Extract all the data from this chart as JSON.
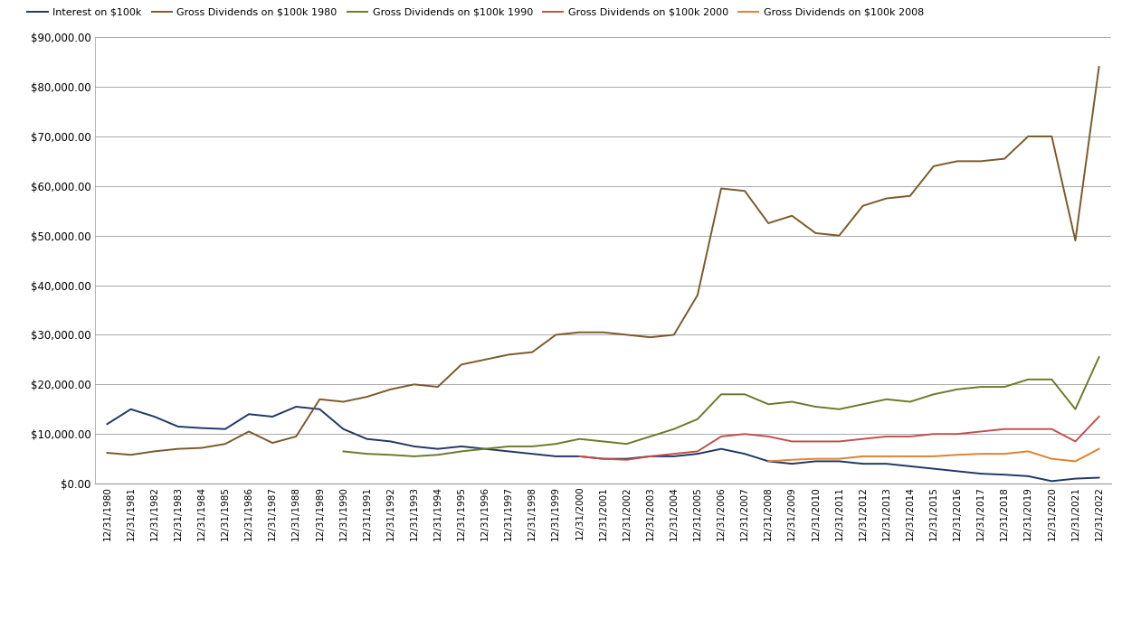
{
  "x_labels": [
    "12/31/1980",
    "12/31/1981",
    "12/31/1982",
    "12/31/1983",
    "12/31/1984",
    "12/31/1985",
    "12/31/1986",
    "12/31/1987",
    "12/31/1988",
    "12/31/1989",
    "12/31/1990",
    "12/31/1991",
    "12/31/1992",
    "12/31/1993",
    "12/31/1994",
    "12/31/1995",
    "12/31/1996",
    "12/31/1997",
    "12/31/1998",
    "12/31/1999",
    "12/31/2000",
    "12/31/2001",
    "12/31/2002",
    "12/31/2003",
    "12/31/2004",
    "12/31/2005",
    "12/31/2006",
    "12/31/2007",
    "12/31/2008",
    "12/31/2009",
    "12/31/2010",
    "12/31/2011",
    "12/31/2012",
    "12/31/2013",
    "12/31/2014",
    "12/31/2015",
    "12/31/2016",
    "12/31/2017",
    "12/31/2018",
    "12/31/2019",
    "12/31/2020",
    "12/31/2021",
    "12/31/2022"
  ],
  "interest": [
    12000,
    15000,
    13500,
    11500,
    11200,
    11000,
    14000,
    13500,
    15500,
    15000,
    11000,
    9000,
    8500,
    7500,
    7000,
    7500,
    7000,
    6500,
    6000,
    5500,
    5500,
    5000,
    5000,
    5500,
    5500,
    6000,
    7000,
    6000,
    4500,
    4000,
    4500,
    4500,
    4000,
    4000,
    3500,
    3000,
    2500,
    2000,
    1800,
    1500,
    500,
    1000,
    1200
  ],
  "gross_1980": [
    6200,
    5800,
    6500,
    7000,
    7200,
    8000,
    10500,
    8200,
    9500,
    17000,
    16500,
    17500,
    19000,
    20000,
    19500,
    24000,
    25000,
    26000,
    26500,
    30000,
    30500,
    30500,
    30000,
    29500,
    30000,
    38000,
    59500,
    59000,
    52500,
    54000,
    50500,
    50000,
    56000,
    57500,
    58000,
    64000,
    65000,
    65000,
    65500,
    70000,
    70000,
    49000,
    84000
  ],
  "gross_1990": [
    null,
    null,
    null,
    null,
    null,
    null,
    null,
    null,
    null,
    null,
    6500,
    6000,
    5800,
    5500,
    5800,
    6500,
    7000,
    7500,
    7500,
    8000,
    9000,
    8500,
    8000,
    9500,
    11000,
    13000,
    18000,
    18000,
    16000,
    16500,
    15500,
    15000,
    16000,
    17000,
    16500,
    18000,
    19000,
    19500,
    19500,
    21000,
    21000,
    15000,
    25500
  ],
  "gross_2000": [
    null,
    null,
    null,
    null,
    null,
    null,
    null,
    null,
    null,
    null,
    null,
    null,
    null,
    null,
    null,
    null,
    null,
    null,
    null,
    null,
    5500,
    5000,
    4800,
    5500,
    6000,
    6500,
    9500,
    10000,
    9500,
    8500,
    8500,
    8500,
    9000,
    9500,
    9500,
    10000,
    10000,
    10500,
    11000,
    11000,
    11000,
    8500,
    13500
  ],
  "gross_2008": [
    null,
    null,
    null,
    null,
    null,
    null,
    null,
    null,
    null,
    null,
    null,
    null,
    null,
    null,
    null,
    null,
    null,
    null,
    null,
    null,
    null,
    null,
    null,
    null,
    null,
    null,
    null,
    null,
    4500,
    4800,
    5000,
    5000,
    5500,
    5500,
    5500,
    5500,
    5800,
    6000,
    6000,
    6500,
    5000,
    4500,
    7000
  ],
  "series_colors": {
    "interest": "#1f3864",
    "gross_1980": "#7b5a2a",
    "gross_1990": "#6b7a2a",
    "gross_2000": "#c0504d",
    "gross_2008": "#e08030"
  },
  "series_labels": {
    "interest": "Interest on $100k",
    "gross_1980": "Gross Dividends on $100k 1980",
    "gross_1990": "Gross Dividends on $100k 1990",
    "gross_2000": "Gross Dividends on $100k 2000",
    "gross_2008": "Gross Dividends on $100k 2008"
  },
  "ylim": [
    0,
    90000
  ],
  "yticks": [
    0,
    10000,
    20000,
    30000,
    40000,
    50000,
    60000,
    70000,
    80000,
    90000
  ],
  "background_color": "#ffffff",
  "grid_color": "#aaaaaa",
  "line_width": 1.4
}
